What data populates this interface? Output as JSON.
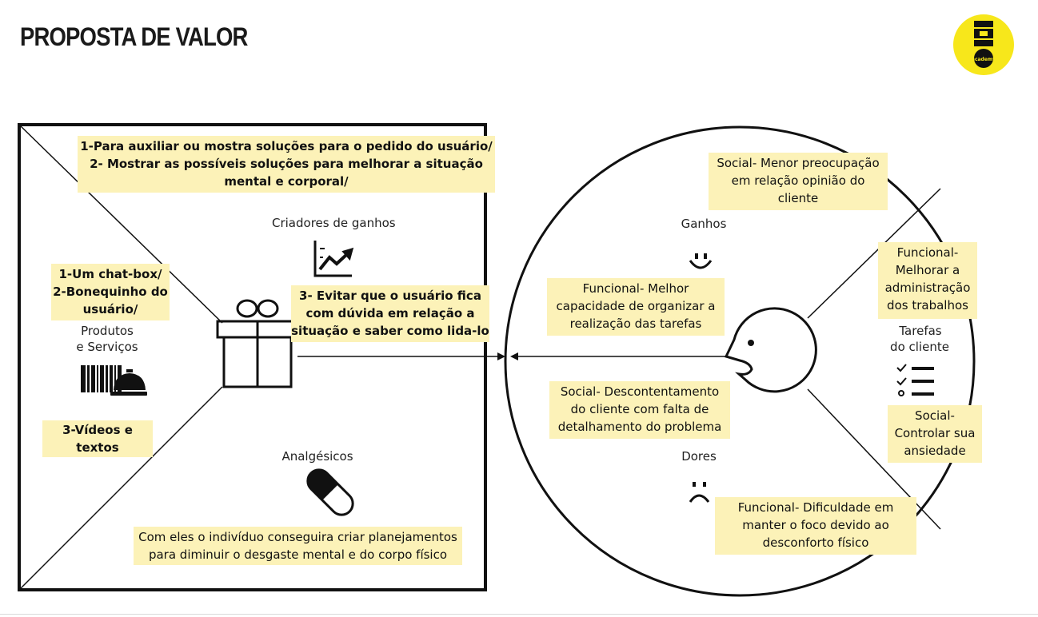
{
  "title": "PROPOSTA DE VALOR",
  "logo": {
    "icon": "academy-logo",
    "text": "academy",
    "color": "#f7e71b"
  },
  "colors": {
    "note_background": "#fcf2b8",
    "stroke": "#111111"
  },
  "value_map": {
    "gain_creators_label": "Criadores de ganhos",
    "products_services_label_line1": "Produtos",
    "products_services_label_line2": "e Serviços",
    "pain_relievers_label": "Analgésicos",
    "icons": [
      "chart-up-icon",
      "gift-icon",
      "barcode-icon",
      "service-bell-icon",
      "pill-icon"
    ],
    "notes": {
      "gain_creators_top_line1": "1-Para auxiliar ou mostra soluções para o pedido do usuário/",
      "gain_creators_top_line2": "2- Mostrar as possíveis soluções para melhorar a situação",
      "gain_creators_top_line3": "mental e corporal/",
      "gain_creators_mid_line1": "3- Evitar que o usuário fica",
      "gain_creators_mid_line2": "com dúvida em relação a",
      "gain_creators_mid_line3": "situação e saber como lida-lo",
      "products_line1": "1-Um chat-box/",
      "products_line2": "2-Bonequinho do",
      "products_line3": "usuário/",
      "products_videos_line1": "3-Vídeos e",
      "products_videos_line2": "textos",
      "pain_relievers_line1": "Com eles o indivíduo conseguira criar planejamentos",
      "pain_relievers_line2": "para diminuir o desgaste mental e do corpo físico"
    }
  },
  "customer_profile": {
    "gains_label": "Ganhos",
    "pains_label": "Dores",
    "jobs_label_line1": "Tarefas",
    "jobs_label_line2": "do cliente",
    "icons": [
      "smile-icon",
      "sad-face-icon",
      "checklist-icon",
      "customer-face-icon"
    ],
    "notes": {
      "gain_social_line1": "Social- Menor preocupação",
      "gain_social_line2": "em relação opinião do",
      "gain_social_line3": "cliente",
      "gain_functional_line1": "Funcional- Melhor",
      "gain_functional_line2": "capacidade de organizar a",
      "gain_functional_line3": "realização das tarefas",
      "jobs_functional_line1": "Funcional-",
      "jobs_functional_line2": "Melhorar a",
      "jobs_functional_line3": "administração",
      "jobs_functional_line4": "dos trabalhos",
      "jobs_social_line1": "Social-",
      "jobs_social_line2": "Controlar sua",
      "jobs_social_line3": "ansiedade",
      "pain_social_line1": "Social- Descontentamento",
      "pain_social_line2": "do cliente com falta de",
      "pain_social_line3": "detalhamento do problema",
      "pain_functional_line1": "Funcional- Dificuldade em",
      "pain_functional_line2": "manter o foco devido ao",
      "pain_functional_line3": "desconforto físico"
    }
  }
}
